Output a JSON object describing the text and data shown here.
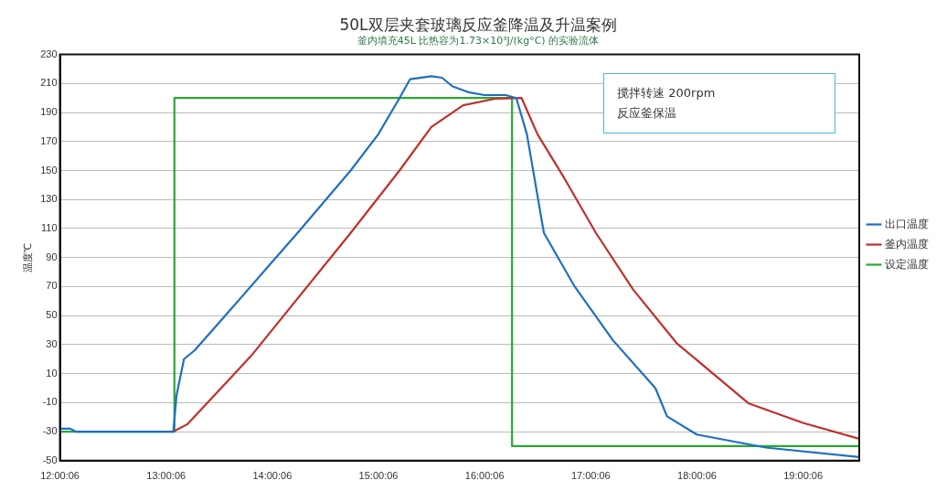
{
  "chart_data": {
    "type": "line",
    "title": "50L双层夹套玻璃反应釜降温及升温案例",
    "subtitle": "釜内填充45L 比热容为1.73×10³J/(kg°C) 的实验流体",
    "ylabel": "温度℃",
    "annotations": [
      "搅拌转速 200rpm",
      "反应釜保温"
    ],
    "xlim": [
      12.0017,
      19.53
    ],
    "xticks": [
      {
        "value": 12.0017,
        "label": "12:00:06"
      },
      {
        "value": 13.0017,
        "label": "13:00:06"
      },
      {
        "value": 14.0017,
        "label": "14:00:06"
      },
      {
        "value": 15.0017,
        "label": "15:00:06"
      },
      {
        "value": 16.0017,
        "label": "16:00:06"
      },
      {
        "value": 17.0017,
        "label": "17:00:06"
      },
      {
        "value": 18.0017,
        "label": "18:00:06"
      },
      {
        "value": 19.0017,
        "label": "19:00:06"
      }
    ],
    "ylim": [
      -50,
      230
    ],
    "yticks": [
      -50,
      -30,
      -10,
      10,
      30,
      50,
      70,
      90,
      110,
      130,
      150,
      170,
      190,
      210,
      230
    ],
    "grid": "y",
    "legend": "right",
    "marker": "none",
    "line_style": "solid",
    "series": [
      {
        "name": "出口温度",
        "color": "#1f6fc0",
        "x": [
          12.0017,
          12.1,
          12.15,
          12.5,
          13.0,
          13.07,
          13.1,
          13.17,
          13.27,
          13.5,
          14.0,
          14.24,
          14.74,
          15.0,
          15.2,
          15.3,
          15.5,
          15.6,
          15.7,
          15.85,
          16.0,
          16.2,
          16.3,
          16.4,
          16.56,
          16.85,
          17.21,
          17.61,
          17.72,
          18.0,
          18.65,
          19.53
        ],
        "values": [
          -28,
          -28,
          -30,
          -30,
          -30,
          -30,
          -5,
          20,
          26,
          45,
          87,
          107,
          150,
          175,
          200,
          213,
          215,
          214,
          208,
          204,
          202,
          202,
          200,
          175,
          107,
          70,
          33,
          0,
          -19.5,
          -32,
          -41,
          -47.5
        ]
      },
      {
        "name": "釜内温度",
        "color": "#c0302c",
        "x": [
          13.07,
          13.2,
          13.8,
          14.74,
          15.2,
          15.5,
          15.8,
          16.1,
          16.35,
          16.5,
          16.75,
          17.05,
          17.4,
          17.81,
          18.49,
          19.0,
          19.53
        ],
        "values": [
          -30,
          -25,
          22,
          107,
          150,
          180,
          195,
          199.5,
          200,
          175,
          145,
          107,
          68,
          31,
          -10.6,
          -24,
          -35
        ]
      },
      {
        "name": "设定温度",
        "type": "step",
        "color": "#2aa832",
        "x": [
          12.0017,
          13.08,
          16.26,
          19.53
        ],
        "values": [
          -30,
          200,
          -40,
          -40
        ]
      }
    ]
  }
}
